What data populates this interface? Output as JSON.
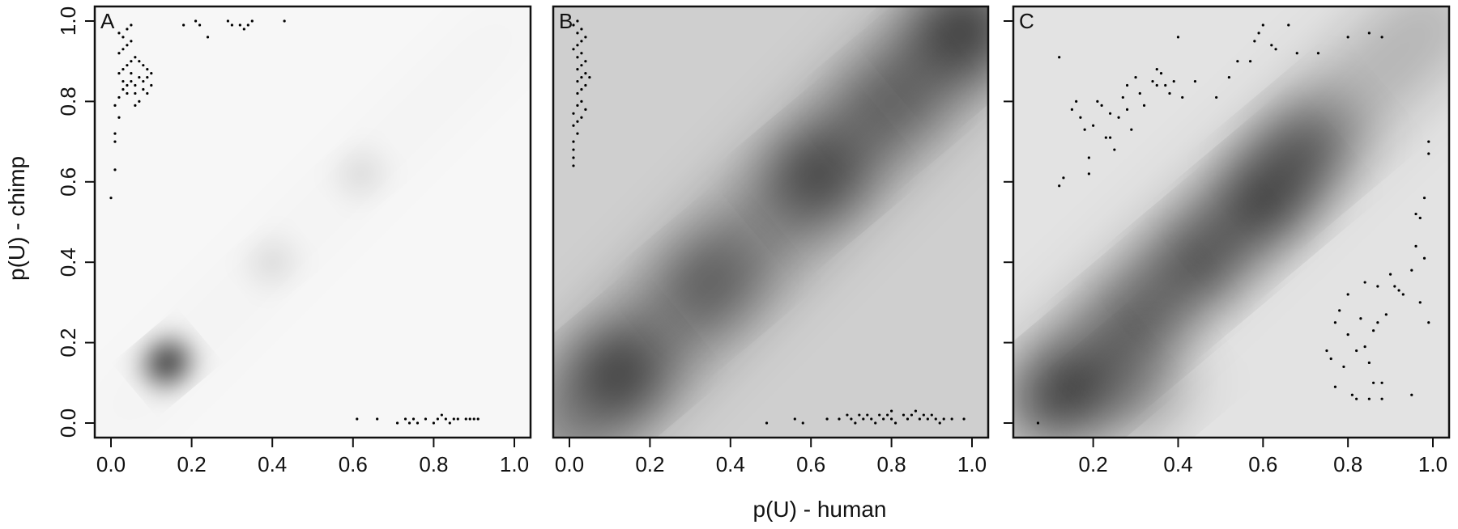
{
  "figure": {
    "xlabel": "p(U) - human",
    "ylabel": "p(U) - chimp"
  },
  "chart_data": [
    {
      "type": "scatter",
      "panel": "A",
      "xlim": [
        0,
        1
      ],
      "ylim": [
        0,
        1
      ],
      "x_ticks": [
        "0.0",
        "0.2",
        "0.4",
        "0.6",
        "0.8",
        "1.0"
      ],
      "y_ticks": [
        "0.0",
        "0.2",
        "0.4",
        "0.6",
        "0.8",
        "1.0"
      ],
      "density_shading": true,
      "density_hotspots": [
        {
          "x": 0.14,
          "y": 0.15,
          "intensity": 0.95
        },
        {
          "x": 0.4,
          "y": 0.4,
          "intensity": 0.12
        },
        {
          "x": 0.62,
          "y": 0.62,
          "intensity": 0.12
        }
      ],
      "points": [
        [
          0.0,
          0.56
        ],
        [
          0.01,
          0.63
        ],
        [
          0.01,
          0.7
        ],
        [
          0.01,
          0.72
        ],
        [
          0.02,
          0.76
        ],
        [
          0.01,
          0.79
        ],
        [
          0.02,
          0.81
        ],
        [
          0.03,
          0.83
        ],
        [
          0.04,
          0.84
        ],
        [
          0.05,
          0.85
        ],
        [
          0.06,
          0.84
        ],
        [
          0.07,
          0.86
        ],
        [
          0.08,
          0.85
        ],
        [
          0.09,
          0.86
        ],
        [
          0.1,
          0.87
        ],
        [
          0.02,
          0.87
        ],
        [
          0.03,
          0.88
        ],
        [
          0.04,
          0.89
        ],
        [
          0.05,
          0.9
        ],
        [
          0.06,
          0.91
        ],
        [
          0.07,
          0.9
        ],
        [
          0.08,
          0.89
        ],
        [
          0.09,
          0.88
        ],
        [
          0.02,
          0.92
        ],
        [
          0.03,
          0.93
        ],
        [
          0.04,
          0.94
        ],
        [
          0.05,
          0.95
        ],
        [
          0.03,
          0.96
        ],
        [
          0.02,
          0.97
        ],
        [
          0.04,
          0.98
        ],
        [
          0.05,
          0.99
        ],
        [
          0.06,
          0.82
        ],
        [
          0.07,
          0.8
        ],
        [
          0.06,
          0.79
        ],
        [
          0.04,
          0.82
        ],
        [
          0.05,
          0.87
        ],
        [
          0.1,
          0.84
        ],
        [
          0.08,
          0.83
        ],
        [
          0.09,
          0.82
        ],
        [
          0.03,
          0.85
        ],
        [
          0.18,
          0.99
        ],
        [
          0.21,
          1.0
        ],
        [
          0.22,
          0.99
        ],
        [
          0.24,
          0.96
        ],
        [
          0.29,
          1.0
        ],
        [
          0.3,
          0.99
        ],
        [
          0.32,
          0.99
        ],
        [
          0.33,
          0.98
        ],
        [
          0.34,
          0.99
        ],
        [
          0.35,
          1.0
        ],
        [
          0.43,
          1.0
        ],
        [
          0.61,
          0.01
        ],
        [
          0.66,
          0.01
        ],
        [
          0.71,
          0.0
        ],
        [
          0.73,
          0.01
        ],
        [
          0.74,
          0.0
        ],
        [
          0.75,
          0.01
        ],
        [
          0.76,
          0.0
        ],
        [
          0.78,
          0.01
        ],
        [
          0.8,
          0.0
        ],
        [
          0.81,
          0.01
        ],
        [
          0.82,
          0.02
        ],
        [
          0.83,
          0.01
        ],
        [
          0.84,
          0.0
        ],
        [
          0.85,
          0.01
        ],
        [
          0.86,
          0.01
        ],
        [
          0.88,
          0.01
        ],
        [
          0.89,
          0.01
        ],
        [
          0.9,
          0.01
        ],
        [
          0.91,
          0.01
        ]
      ]
    },
    {
      "type": "scatter",
      "panel": "B",
      "xlim": [
        0,
        1
      ],
      "ylim": [
        0,
        1
      ],
      "x_ticks": [
        "0.0",
        "0.2",
        "0.4",
        "0.6",
        "0.8",
        "1.0"
      ],
      "y_ticks": [],
      "density_shading": true,
      "density_hotspots": [
        {
          "x": 0.12,
          "y": 0.12,
          "intensity": 0.75
        },
        {
          "x": 0.62,
          "y": 0.62,
          "intensity": 0.7
        },
        {
          "x": 0.97,
          "y": 0.97,
          "intensity": 0.8
        },
        {
          "x": 0.35,
          "y": 0.35,
          "intensity": 0.45
        },
        {
          "x": 0.8,
          "y": 0.8,
          "intensity": 0.45
        }
      ],
      "points": [
        [
          0.01,
          0.64
        ],
        [
          0.01,
          0.66
        ],
        [
          0.01,
          0.68
        ],
        [
          0.01,
          0.7
        ],
        [
          0.02,
          0.72
        ],
        [
          0.01,
          0.74
        ],
        [
          0.02,
          0.75
        ],
        [
          0.01,
          0.77
        ],
        [
          0.02,
          0.79
        ],
        [
          0.03,
          0.8
        ],
        [
          0.02,
          0.82
        ],
        [
          0.03,
          0.83
        ],
        [
          0.02,
          0.85
        ],
        [
          0.03,
          0.86
        ],
        [
          0.04,
          0.87
        ],
        [
          0.02,
          0.88
        ],
        [
          0.03,
          0.89
        ],
        [
          0.04,
          0.9
        ],
        [
          0.02,
          0.91
        ],
        [
          0.03,
          0.92
        ],
        [
          0.01,
          0.93
        ],
        [
          0.02,
          0.94
        ],
        [
          0.03,
          0.95
        ],
        [
          0.04,
          0.96
        ],
        [
          0.02,
          0.97
        ],
        [
          0.03,
          0.98
        ],
        [
          0.01,
          0.99
        ],
        [
          0.02,
          1.0
        ],
        [
          0.04,
          0.84
        ],
        [
          0.05,
          0.86
        ],
        [
          0.04,
          0.78
        ],
        [
          0.03,
          0.76
        ],
        [
          0.49,
          0.0
        ],
        [
          0.56,
          0.01
        ],
        [
          0.58,
          0.0
        ],
        [
          0.64,
          0.01
        ],
        [
          0.67,
          0.01
        ],
        [
          0.69,
          0.02
        ],
        [
          0.7,
          0.01
        ],
        [
          0.71,
          0.0
        ],
        [
          0.72,
          0.02
        ],
        [
          0.73,
          0.01
        ],
        [
          0.74,
          0.02
        ],
        [
          0.75,
          0.01
        ],
        [
          0.76,
          0.0
        ],
        [
          0.77,
          0.02
        ],
        [
          0.78,
          0.01
        ],
        [
          0.79,
          0.02
        ],
        [
          0.8,
          0.01
        ],
        [
          0.8,
          0.03
        ],
        [
          0.81,
          0.0
        ],
        [
          0.83,
          0.02
        ],
        [
          0.84,
          0.01
        ],
        [
          0.85,
          0.02
        ],
        [
          0.86,
          0.03
        ],
        [
          0.87,
          0.01
        ],
        [
          0.88,
          0.02
        ],
        [
          0.89,
          0.01
        ],
        [
          0.9,
          0.02
        ],
        [
          0.91,
          0.01
        ],
        [
          0.92,
          0.0
        ],
        [
          0.93,
          0.01
        ],
        [
          0.95,
          0.01
        ],
        [
          0.98,
          0.01
        ]
      ]
    },
    {
      "type": "scatter",
      "panel": "C",
      "xlim": [
        0.05,
        1.0
      ],
      "ylim": [
        0,
        1
      ],
      "x_ticks": [
        "0.2",
        "0.4",
        "0.6",
        "0.8",
        "1.0"
      ],
      "y_ticks": [],
      "density_shading": true,
      "density_hotspots": [
        {
          "x": 0.14,
          "y": 0.08,
          "intensity": 0.85
        },
        {
          "x": 0.3,
          "y": 0.25,
          "intensity": 0.6
        },
        {
          "x": 0.45,
          "y": 0.4,
          "intensity": 0.7
        },
        {
          "x": 0.6,
          "y": 0.55,
          "intensity": 0.8
        },
        {
          "x": 0.7,
          "y": 0.68,
          "intensity": 0.6
        },
        {
          "x": 0.3,
          "y": 0.08,
          "intensity": 0.4
        }
      ],
      "points": [
        [
          0.07,
          0.0
        ],
        [
          0.12,
          0.59
        ],
        [
          0.13,
          0.61
        ],
        [
          0.12,
          0.91
        ],
        [
          0.15,
          0.78
        ],
        [
          0.16,
          0.8
        ],
        [
          0.17,
          0.76
        ],
        [
          0.18,
          0.73
        ],
        [
          0.19,
          0.66
        ],
        [
          0.19,
          0.62
        ],
        [
          0.2,
          0.74
        ],
        [
          0.21,
          0.8
        ],
        [
          0.22,
          0.79
        ],
        [
          0.23,
          0.71
        ],
        [
          0.24,
          0.77
        ],
        [
          0.24,
          0.71
        ],
        [
          0.25,
          0.68
        ],
        [
          0.26,
          0.76
        ],
        [
          0.27,
          0.81
        ],
        [
          0.28,
          0.84
        ],
        [
          0.28,
          0.78
        ],
        [
          0.29,
          0.73
        ],
        [
          0.3,
          0.86
        ],
        [
          0.31,
          0.82
        ],
        [
          0.32,
          0.79
        ],
        [
          0.34,
          0.85
        ],
        [
          0.35,
          0.88
        ],
        [
          0.35,
          0.84
        ],
        [
          0.36,
          0.87
        ],
        [
          0.37,
          0.84
        ],
        [
          0.38,
          0.82
        ],
        [
          0.39,
          0.85
        ],
        [
          0.4,
          0.96
        ],
        [
          0.41,
          0.81
        ],
        [
          0.44,
          0.85
        ],
        [
          0.49,
          0.81
        ],
        [
          0.52,
          0.86
        ],
        [
          0.54,
          0.9
        ],
        [
          0.57,
          0.9
        ],
        [
          0.58,
          0.95
        ],
        [
          0.59,
          0.97
        ],
        [
          0.6,
          0.99
        ],
        [
          0.62,
          0.94
        ],
        [
          0.63,
          0.93
        ],
        [
          0.66,
          0.99
        ],
        [
          0.68,
          0.92
        ],
        [
          0.73,
          0.92
        ],
        [
          0.8,
          0.96
        ],
        [
          0.85,
          0.97
        ],
        [
          0.88,
          0.96
        ],
        [
          0.75,
          0.18
        ],
        [
          0.76,
          0.16
        ],
        [
          0.77,
          0.25
        ],
        [
          0.77,
          0.09
        ],
        [
          0.78,
          0.28
        ],
        [
          0.79,
          0.14
        ],
        [
          0.8,
          0.22
        ],
        [
          0.8,
          0.32
        ],
        [
          0.81,
          0.07
        ],
        [
          0.82,
          0.18
        ],
        [
          0.82,
          0.06
        ],
        [
          0.83,
          0.26
        ],
        [
          0.84,
          0.19
        ],
        [
          0.84,
          0.35
        ],
        [
          0.85,
          0.15
        ],
        [
          0.85,
          0.06
        ],
        [
          0.86,
          0.23
        ],
        [
          0.86,
          0.1
        ],
        [
          0.87,
          0.25
        ],
        [
          0.87,
          0.34
        ],
        [
          0.88,
          0.06
        ],
        [
          0.88,
          0.1
        ],
        [
          0.89,
          0.27
        ],
        [
          0.9,
          0.37
        ],
        [
          0.91,
          0.34
        ],
        [
          0.92,
          0.33
        ],
        [
          0.93,
          0.32
        ],
        [
          0.95,
          0.07
        ],
        [
          0.95,
          0.38
        ],
        [
          0.96,
          0.44
        ],
        [
          0.96,
          0.52
        ],
        [
          0.97,
          0.51
        ],
        [
          0.97,
          0.3
        ],
        [
          0.98,
          0.56
        ],
        [
          0.99,
          0.67
        ],
        [
          0.99,
          0.7
        ],
        [
          0.99,
          0.25
        ],
        [
          0.98,
          0.41
        ]
      ]
    }
  ]
}
